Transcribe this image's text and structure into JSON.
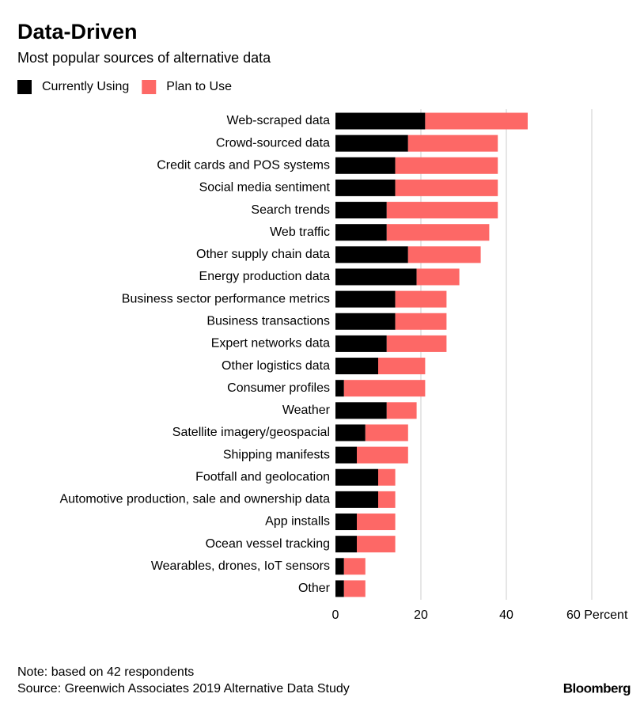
{
  "chart_data": {
    "type": "stacked_barh",
    "title": "Data-Driven",
    "subtitle": "Most popular sources of alternative data",
    "categories": [
      "Web-scraped data",
      "Crowd-sourced data",
      "Credit cards and POS systems",
      "Social media sentiment",
      "Search trends",
      "Web traffic",
      "Other supply chain data",
      "Energy production data",
      "Business sector performance metrics",
      "Business transactions",
      "Expert networks data",
      "Other logistics data",
      "Consumer profiles",
      "Weather",
      "Satellite imagery/geospacial",
      "Shipping manifests",
      "Footfall and geolocation",
      "Automotive production, sale and ownership data",
      "App installs",
      "Ocean vessel tracking",
      "Wearables, drones, IoT sensors",
      "Other"
    ],
    "series": [
      {
        "name": "Currently Using",
        "color": "#000000",
        "values": [
          21,
          17,
          14,
          14,
          12,
          12,
          17,
          19,
          14,
          14,
          12,
          10,
          2,
          12,
          7,
          5,
          10,
          10,
          5,
          5,
          2,
          2
        ]
      },
      {
        "name": "Plan to Use",
        "color": "#fd6866",
        "values": [
          24,
          21,
          24,
          24,
          26,
          24,
          17,
          10,
          12,
          12,
          14,
          11,
          19,
          7,
          10,
          12,
          4,
          4,
          9,
          9,
          5,
          5
        ]
      }
    ],
    "xlim": [
      0,
      60
    ],
    "xticks": [
      0,
      20,
      40,
      {
        "value": 60,
        "label": "60 Percent"
      }
    ],
    "grid": true,
    "note": "Note: based on 42 respondents",
    "source": "Source: Greenwich Associates 2019 Alternative Data Study",
    "brand": "Bloomberg"
  }
}
